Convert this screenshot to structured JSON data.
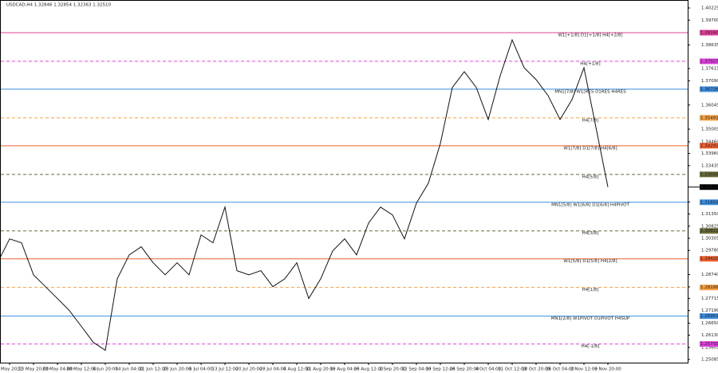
{
  "chart_data": {
    "type": "line",
    "header": "USDCAD,H4  1.32846 1.32854 1.32363 1.32510",
    "categories": [
      "",
      "6 May 2022",
      null,
      "13 May 20:00",
      null,
      "23 May 04:00",
      null,
      "30 May 12:00",
      null,
      "6 Jun 20:00",
      null,
      "14 Jun 04:00",
      null,
      "21 Jun 12:00",
      null,
      "28 Jun 20:00",
      null,
      "6 Jul 04:00",
      null,
      "13 Jul 12:00",
      null,
      "20 Jul 20:00",
      null,
      "28 Jul 04:00",
      null,
      "4 Aug 12:00",
      null,
      "11 Aug 20:00",
      null,
      "19 Aug 04:00",
      null,
      "26 Aug 12:00",
      null,
      "2 Sep 20:00",
      null,
      "12 Sep 04:00",
      null,
      "19 Sep 12:00",
      null,
      "26 Sep 20:00",
      null,
      "4 Oct 04:00",
      null,
      "11 Oct 12:00",
      null,
      "18 Oct 20:00",
      null,
      "26 Oct 04:00",
      null,
      "2 Nov 12:00",
      null,
      "9 Nov 20:00"
    ],
    "series": [
      {
        "name": "USDCAD",
        "color": "#111111",
        "values": [
          1.2925,
          1.3028,
          1.3011,
          1.2873,
          1.2822,
          1.2771,
          1.2719,
          1.2651,
          1.2582,
          1.2548,
          1.2856,
          1.2959,
          1.2994,
          1.2925,
          1.2873,
          1.2925,
          1.2873,
          1.3045,
          1.3011,
          1.3165,
          1.2891,
          1.2873,
          1.2891,
          1.2822,
          1.2856,
          1.2925,
          1.2771,
          1.2856,
          1.2976,
          1.3028,
          1.2959,
          1.3096,
          1.3165,
          1.3131,
          1.3028,
          1.3182,
          1.3268,
          1.3439,
          1.368,
          1.3748,
          1.368,
          1.3542,
          1.3731,
          1.3885,
          1.3765,
          1.3714,
          1.3645,
          1.3542,
          1.3628,
          1.3765,
          1.3508,
          1.3251
        ]
      }
    ],
    "ylim": [
      1.24948,
      1.40568
    ],
    "yticks": [
      1.40225,
      {
        "value": 1.397,
        "label": "1.39700"
      },
      1.38635,
      1.37615,
      {
        "value": 1.3709,
        "label": "1.37090"
      },
      1.36045,
      1.35005,
      {
        "value": 1.3446,
        "label": "1.34460"
      },
      {
        "value": 1.3396,
        "label": "1.33960"
      },
      1.33435,
      {
        "value": 1.3187,
        "label": "1.31870"
      },
      {
        "value": 1.3135,
        "label": "1.31350"
      },
      1.30825,
      1.30305,
      {
        "value": 1.2978,
        "label": "1.29780"
      },
      {
        "value": 1.2874,
        "label": "1.28740"
      },
      {
        "value": 1.2821,
        "label": "1.28210"
      },
      1.27715,
      {
        "value": 1.2719,
        "label": "1.27190"
      },
      {
        "value": 1.2665,
        "label": "1.26650"
      },
      {
        "value": 1.2613,
        "label": "1.26130"
      },
      1.25605,
      1.25085
    ],
    "levels": [
      {
        "text": "W1[+1/8] D1[+1/8] H4[+2/8]",
        "value": 1.3916,
        "value_label": "1.39160",
        "color": "#e0409a",
        "style": "solid"
      },
      {
        "text": "H4[+1/8]",
        "value": 1.37927,
        "value_label": "1.37927",
        "color": "#e040e0",
        "style": "dash"
      },
      {
        "text": "MN1[7/8] W1[RES D1RES H4RES",
        "value": 1.36726,
        "value_label": "1.36726",
        "color": "#3a8ee0",
        "style": "solid"
      },
      {
        "text": "H4[7/8]",
        "value": 1.35491,
        "value_label": "1.35491",
        "color": "#f5a040",
        "style": "dash"
      },
      {
        "text": "W1[7/8] D1[7/8] H4[6/8]",
        "value": 1.34291,
        "value_label": "1.34291",
        "color": "#f06030",
        "style": "solid"
      },
      {
        "text": "H4[5/8]",
        "value": 1.33056,
        "value_label": "1.33056",
        "color": "#6b6b3a",
        "style": "dash"
      },
      {
        "text": "MN1[5/8] W1[6/8] D1[6/8] H4PIVOT",
        "value": 1.31856,
        "value_label": "1.31856",
        "color": "#3a8ee0",
        "style": "solid"
      },
      {
        "text": "H4[3/8]",
        "value": 1.30621,
        "value_label": "1.30621",
        "color": "#6b6b3a",
        "style": "dash"
      },
      {
        "text": "W1[5/8] D1[5/8] H4[2/8]",
        "value": 1.2942,
        "value_label": "1.29420",
        "color": "#f06030",
        "style": "solid"
      },
      {
        "text": "H4[1/8]",
        "value": 1.28186,
        "value_label": "1.28186",
        "color": "#f5a040",
        "style": "dash"
      },
      {
        "text": "MN1[2/8] W1PIVOT D1PIVOT H4SUP",
        "value": 1.26951,
        "value_label": "1.26951",
        "color": "#3a8ee0",
        "style": "solid"
      },
      {
        "text": "H4[-1/8]",
        "value": 1.2575,
        "value_label": "1.25750",
        "color": "#e040e0",
        "style": "dash"
      }
    ],
    "last_price": {
      "value": 1.3251,
      "value_label": "1.32510",
      "color": "#000000"
    }
  }
}
